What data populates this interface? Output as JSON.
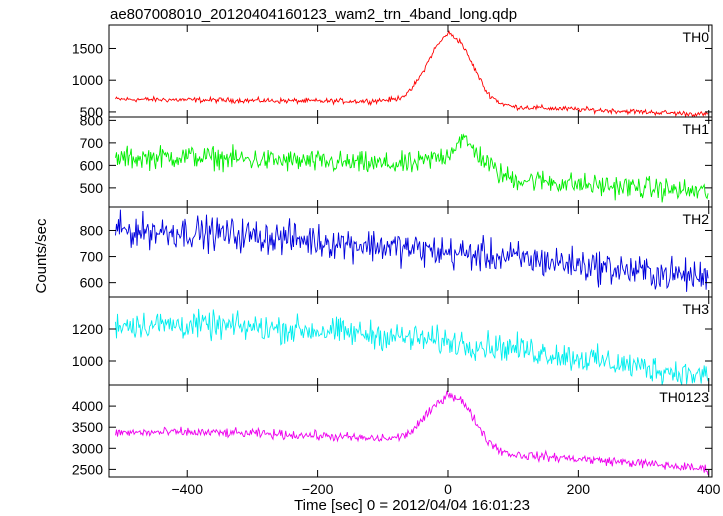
{
  "chart_data": {
    "type": "line",
    "title": "ae807008010_20120404160123_wam2_trn_4band_long.qdp",
    "xlabel": "Time [sec] 0 = 2012/04/04 16:01:23",
    "ylabel": "Counts/sec",
    "xlim": [
      -520,
      405
    ],
    "xticks": [
      -400,
      -200,
      0,
      200,
      400
    ],
    "xtick_labels": [
      "−400",
      "−200",
      "0",
      "200",
      "400"
    ],
    "grid": false,
    "panels": [
      {
        "name": "TH0",
        "color": "#ff0000",
        "ylim": [
          420,
          1870
        ],
        "yticks": [
          500,
          1000,
          1500
        ],
        "ytick_labels": [
          "500",
          "1000",
          "1500"
        ],
        "x": [
          -510,
          -400,
          -300,
          -200,
          -120,
          -80,
          -60,
          -40,
          -20,
          0,
          20,
          40,
          60,
          80,
          100,
          150,
          200,
          300,
          400
        ],
        "values": [
          700,
          690,
          680,
          670,
          670,
          700,
          800,
          1100,
          1500,
          1750,
          1600,
          1200,
          800,
          640,
          580,
          560,
          540,
          500,
          460
        ],
        "noise": 45
      },
      {
        "name": "TH1",
        "color": "#00ee00",
        "ylim": [
          415,
          815
        ],
        "yticks": [
          500,
          600,
          700,
          800
        ],
        "ytick_labels": [
          "500",
          "600",
          "700",
          "800"
        ],
        "x": [
          -510,
          -400,
          -300,
          -200,
          -100,
          -50,
          0,
          20,
          40,
          60,
          80,
          100,
          150,
          200,
          300,
          400
        ],
        "values": [
          630,
          640,
          625,
          615,
          605,
          605,
          650,
          720,
          670,
          610,
          560,
          540,
          530,
          515,
          500,
          480
        ],
        "noise": 55
      },
      {
        "name": "TH2",
        "color": "#0000dd",
        "ylim": [
          545,
          890
        ],
        "yticks": [
          600,
          700,
          800
        ],
        "ytick_labels": [
          "600",
          "700",
          "800"
        ],
        "x": [
          -510,
          -400,
          -300,
          -200,
          -100,
          0,
          100,
          200,
          300,
          400
        ],
        "values": [
          800,
          795,
          780,
          760,
          740,
          715,
          695,
          670,
          640,
          620
        ],
        "noise": 70
      },
      {
        "name": "TH3",
        "color": "#00eeee",
        "ylim": [
          850,
          1400
        ],
        "yticks": [
          1000,
          1200
        ],
        "ytick_labels": [
          "1000",
          "1200"
        ],
        "x": [
          -510,
          -400,
          -300,
          -200,
          -100,
          0,
          100,
          200,
          300,
          400
        ],
        "values": [
          1230,
          1225,
          1210,
          1190,
          1160,
          1120,
          1080,
          1020,
          960,
          900
        ],
        "noise": 95
      },
      {
        "name": "TH0123",
        "color": "#ee00ee",
        "ylim": [
          2320,
          4500
        ],
        "yticks": [
          2500,
          3000,
          3500,
          4000
        ],
        "ytick_labels": [
          "2500",
          "3000",
          "3500",
          "4000"
        ],
        "x": [
          -510,
          -400,
          -300,
          -200,
          -120,
          -80,
          -60,
          -40,
          -20,
          0,
          20,
          40,
          60,
          80,
          100,
          150,
          200,
          300,
          400
        ],
        "values": [
          3370,
          3380,
          3350,
          3300,
          3230,
          3240,
          3350,
          3650,
          4000,
          4300,
          4150,
          3700,
          3200,
          2950,
          2850,
          2800,
          2750,
          2640,
          2500
        ],
        "noise": 120
      }
    ]
  }
}
